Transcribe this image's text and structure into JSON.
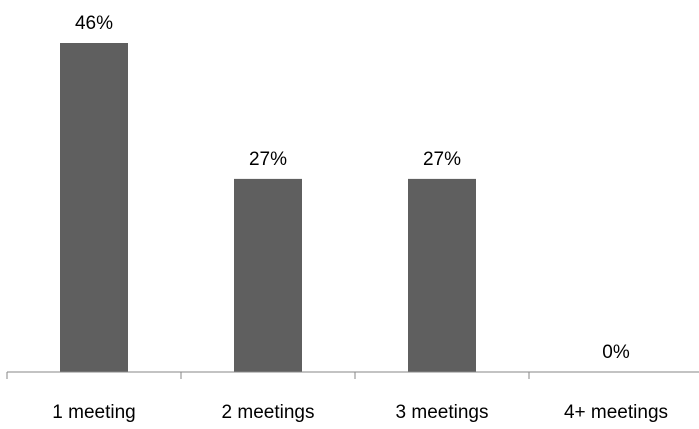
{
  "chart_data": {
    "type": "bar",
    "categories": [
      "1 meeting",
      "2 meetings",
      "3 meetings",
      "4+ meetings"
    ],
    "values": [
      46,
      27,
      27,
      0
    ],
    "data_labels": [
      "46%",
      "27%",
      "27%",
      "0%"
    ],
    "ylim": [
      0,
      50
    ],
    "grid": false,
    "legend": "none",
    "bar_color": "#5f5f5f",
    "axis_color": "#878787"
  }
}
